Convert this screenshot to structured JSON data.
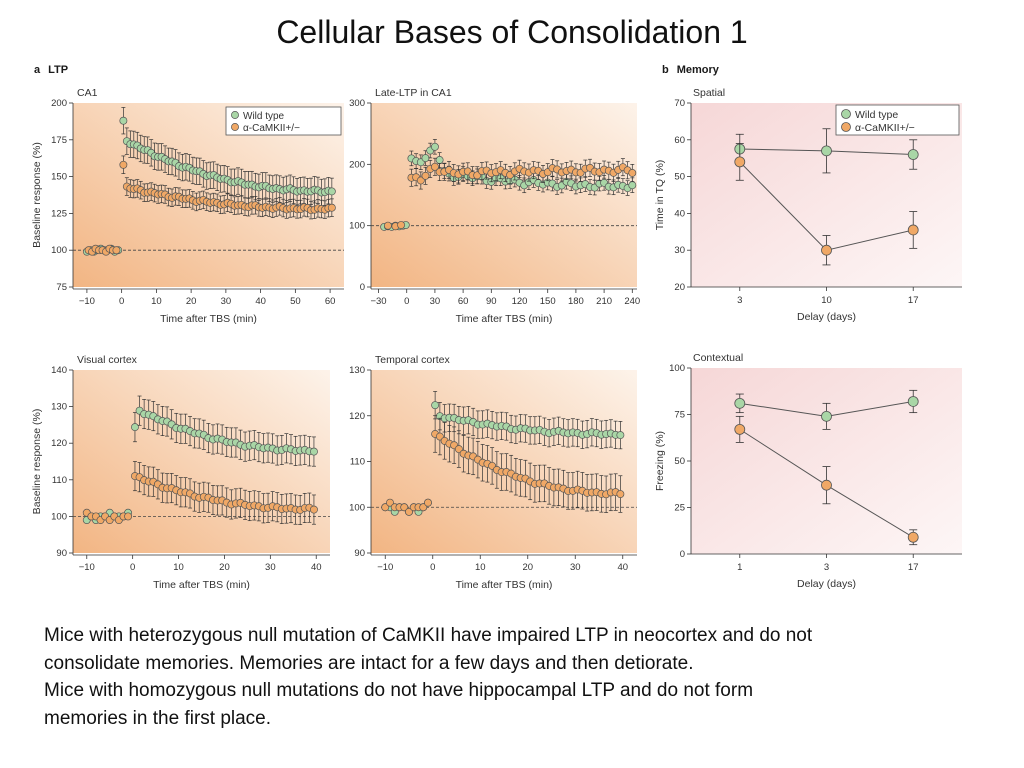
{
  "title": "Cellular Bases of Consolidation 1",
  "section_a": {
    "letter": "a",
    "label": "LTP"
  },
  "section_b": {
    "letter": "b",
    "label": "Memory"
  },
  "caption": [
    "Mice with heterozygous null mutation of CaMKII have impaired LTP in neocortex and do not",
    "consolidate memories. Memories are intact for a few days and then detiorate.",
    "Mice with homozygous null mutations do not have hippocampal LTP and do not form",
    "memories in the first place."
  ],
  "colors": {
    "wild_type": "#a9d6a6",
    "camkii": "#f0a866",
    "ltp_bg_dark": "#f3bb8d",
    "ltp_bg_light": "#fcefe2",
    "memory_bg": "#f9e3e3"
  },
  "chart_data": [
    {
      "id": "ca1",
      "type": "scatter",
      "title": "CA1",
      "xlabel": "Time after TBS (min)",
      "ylabel": "Baseline response (%)",
      "xlim": [
        -14,
        64
      ],
      "ylim": [
        75,
        200
      ],
      "xticks": [
        -10,
        0,
        10,
        20,
        30,
        40,
        50,
        60
      ],
      "yticks": [
        75,
        100,
        125,
        150,
        175,
        200
      ],
      "baseline": 100,
      "legend": "top-right",
      "series": [
        {
          "name": "Wild type",
          "baseline_x": [
            -10,
            -9,
            -8,
            -7,
            -6,
            -5,
            -4,
            -3,
            -2,
            -1
          ],
          "baseline_y": [
            99,
            100,
            99,
            100,
            101,
            100,
            100,
            101,
            99,
            100
          ],
          "x": [
            0.5,
            1,
            60
          ],
          "y": [
            187,
            175,
            140
          ],
          "err": 9
        },
        {
          "name": "α-CaMKII+/−",
          "baseline_x": [
            -9.5,
            -8.5,
            -7.5,
            -6.5,
            -5.5,
            -4.5,
            -3.5,
            -2.5,
            -1.5
          ],
          "baseline_y": [
            100,
            99,
            101,
            100,
            100,
            99,
            101,
            100,
            100
          ],
          "x": [
            0.5,
            1,
            60
          ],
          "y": [
            158,
            143,
            128
          ],
          "err": 6
        }
      ]
    },
    {
      "id": "late-ltp",
      "type": "scatter",
      "title": "Late-LTP in CA1",
      "xlabel": "Time after TBS (min)",
      "ylabel": "",
      "xlim": [
        -38,
        245
      ],
      "ylim": [
        0,
        300
      ],
      "xticks": [
        -30,
        0,
        30,
        60,
        90,
        120,
        150,
        180,
        210,
        240
      ],
      "yticks": [
        0,
        100,
        200,
        300
      ],
      "baseline": 100,
      "series": [
        {
          "name": "Wild type",
          "baseline_x": [
            -24,
            -20,
            -16,
            -12,
            -8,
            -4,
            -1
          ],
          "baseline_y": [
            98,
            99,
            98,
            100,
            99,
            100,
            101
          ],
          "x": [
            5,
            20,
            30,
            40,
            240
          ],
          "y": [
            205,
            210,
            230,
            185,
            165
          ],
          "err": 12
        },
        {
          "name": "α-CaMKII+/−",
          "baseline_x": [
            -20,
            -12,
            -6
          ],
          "baseline_y": [
            100,
            99,
            101
          ],
          "x": [
            5,
            15,
            30,
            50,
            240
          ],
          "y": [
            178,
            175,
            195,
            185,
            190
          ],
          "err": 14
        }
      ]
    },
    {
      "id": "visual",
      "type": "scatter",
      "title": "Visual cortex",
      "xlabel": "Time after TBS (min)",
      "ylabel": "Baseline response (%)",
      "xlim": [
        -13,
        43
      ],
      "ylim": [
        90,
        140
      ],
      "xticks": [
        -10,
        0,
        10,
        20,
        30,
        40
      ],
      "yticks": [
        90,
        100,
        110,
        120,
        130,
        140
      ],
      "baseline": 100,
      "series": [
        {
          "name": "Wild type",
          "baseline_x": [
            -10,
            -9,
            -8,
            -7,
            -6,
            -5,
            -4,
            -3,
            -2,
            -1
          ],
          "baseline_y": [
            99,
            100,
            99,
            100,
            100,
            101,
            100,
            100,
            100,
            101
          ],
          "x": [
            0.5,
            1.5,
            40
          ],
          "y": [
            124,
            129,
            118
          ],
          "err": 4
        },
        {
          "name": "α-CaMKII+/−",
          "baseline_x": [
            -10,
            -9,
            -8,
            -7,
            -6,
            -5,
            -4,
            -3,
            -2,
            -1
          ],
          "baseline_y": [
            101,
            100,
            100,
            99,
            100,
            99,
            100,
            99,
            100,
            100
          ],
          "x": [
            0.5,
            40
          ],
          "y": [
            111,
            102
          ],
          "err": 4
        }
      ]
    },
    {
      "id": "temporal",
      "type": "scatter",
      "title": "Temporal cortex",
      "xlabel": "Time after TBS (min)",
      "ylabel": "",
      "xlim": [
        -13,
        43
      ],
      "ylim": [
        90,
        130
      ],
      "xticks": [
        -10,
        0,
        10,
        20,
        30,
        40
      ],
      "yticks": [
        90,
        100,
        110,
        120,
        130
      ],
      "baseline": 100,
      "series": [
        {
          "name": "Wild type",
          "baseline_x": [
            -10,
            -9,
            -8,
            -7,
            -6,
            -5,
            -4,
            -3,
            -2,
            -1
          ],
          "baseline_y": [
            100,
            100,
            99,
            100,
            100,
            99,
            100,
            99,
            100,
            101
          ],
          "x": [
            0.5,
            1.5,
            40
          ],
          "y": [
            122,
            120,
            116
          ],
          "err": 3
        },
        {
          "name": "α-CaMKII+/−",
          "baseline_x": [
            -10,
            -9,
            -8,
            -7,
            -6,
            -5,
            -4,
            -3,
            -2,
            -1
          ],
          "baseline_y": [
            100,
            101,
            100,
            100,
            100,
            99,
            100,
            100,
            100,
            101
          ],
          "x": [
            0.5,
            40
          ],
          "y": [
            116,
            103
          ],
          "err": 4
        }
      ]
    },
    {
      "id": "spatial",
      "type": "line",
      "title": "Spatial",
      "xlabel": "Delay (days)",
      "ylabel": "Time in TQ (%)",
      "categories": [
        "3",
        "10",
        "17"
      ],
      "ylim": [
        20,
        70
      ],
      "yticks": [
        20,
        30,
        40,
        50,
        60,
        70
      ],
      "legend": "top-right",
      "series": [
        {
          "name": "Wild type",
          "values": [
            57.5,
            57,
            56
          ],
          "err": [
            4,
            6,
            4
          ]
        },
        {
          "name": "α-CaMKII+/−",
          "values": [
            54,
            30,
            35.5
          ],
          "err": [
            5,
            4,
            5
          ]
        }
      ]
    },
    {
      "id": "contextual",
      "type": "line",
      "title": "Contextual",
      "xlabel": "Delay (days)",
      "ylabel": "Freezing (%)",
      "categories": [
        "1",
        "3",
        "17"
      ],
      "ylim": [
        0,
        100
      ],
      "yticks": [
        0,
        25,
        50,
        75,
        100
      ],
      "series": [
        {
          "name": "Wild type",
          "values": [
            81,
            74,
            82
          ],
          "err": [
            5,
            7,
            6
          ]
        },
        {
          "name": "α-CaMKII+/−",
          "values": [
            67,
            37,
            9
          ],
          "err": [
            7,
            10,
            4
          ]
        }
      ]
    }
  ]
}
